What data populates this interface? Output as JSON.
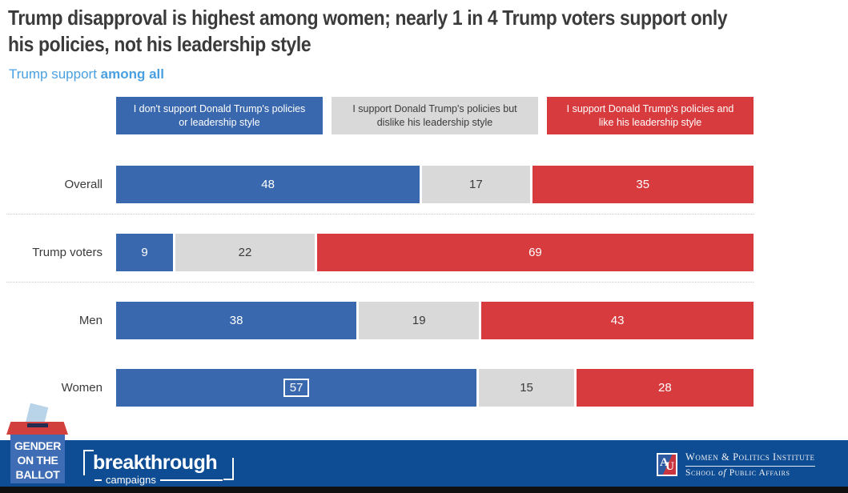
{
  "title": {
    "line1": "Trump disapproval is highest among women; nearly 1 in 4 Trump voters support only",
    "line2": "his policies, not his leadership style"
  },
  "subtitle": {
    "prefix": "Trump support ",
    "emphasis": "among all"
  },
  "chart_data": {
    "type": "bar",
    "variant": "horizontal-stacked",
    "title": "Trump disapproval is highest among women; nearly 1 in 4 Trump voters support only his policies, not his leadership style",
    "subtitle": "Trump support among all",
    "categories": [
      "Overall",
      "Trump voters",
      "Men",
      "Women"
    ],
    "series": [
      {
        "name": "I don't support Donald Trump's policies or leadership style",
        "color": "#3A68AE",
        "text_color": "#FFFFFF",
        "values": [
          48,
          9,
          38,
          57
        ]
      },
      {
        "name": "I support Donald Trump's policies but dislike his leadership style",
        "color": "#D9D9D9",
        "text_color": "#3B3B3B",
        "values": [
          17,
          22,
          19,
          15
        ]
      },
      {
        "name": "I support Donald Trump's policies and like his leadership style",
        "color": "#D83B3E",
        "text_color": "#FFFFFF",
        "values": [
          35,
          69,
          43,
          28
        ]
      }
    ],
    "stack_total": 100,
    "xlim": [
      0,
      100
    ],
    "grid": false,
    "legend_position": "top",
    "separators_after_categories": [
      "Overall",
      "Trump voters"
    ],
    "highlight": {
      "category": "Women",
      "series_index": 0,
      "value": 57
    }
  },
  "footer": {
    "gender_ballot_logo": {
      "line1": "GENDER",
      "line2": "ON THE",
      "line3": "BALLOT"
    },
    "breakthrough_logo": {
      "name": "breakthrough",
      "tagline": "campaigns"
    },
    "institute": {
      "monogram_a": "A",
      "monogram_u": "U",
      "line1": "Women & Politics Institute",
      "line2_school": "School",
      "line2_of": "of",
      "line2_rest": "Public Affairs"
    }
  },
  "colors": {
    "title_text": "#3B3B3B",
    "subtitle_text": "#4A9FE0",
    "bar_blue": "#3A68AE",
    "bar_gray": "#D9D9D9",
    "bar_red": "#D83B3E",
    "footer_band": "#0E4C93",
    "footer_strip": "#101010",
    "logo_box_blue": "#3E6CB5",
    "logo_lid_red": "#D2403E",
    "ballot_slip_blue": "#B9D3E8",
    "au_blue": "#2D5AA0",
    "au_red": "#C8353F"
  }
}
